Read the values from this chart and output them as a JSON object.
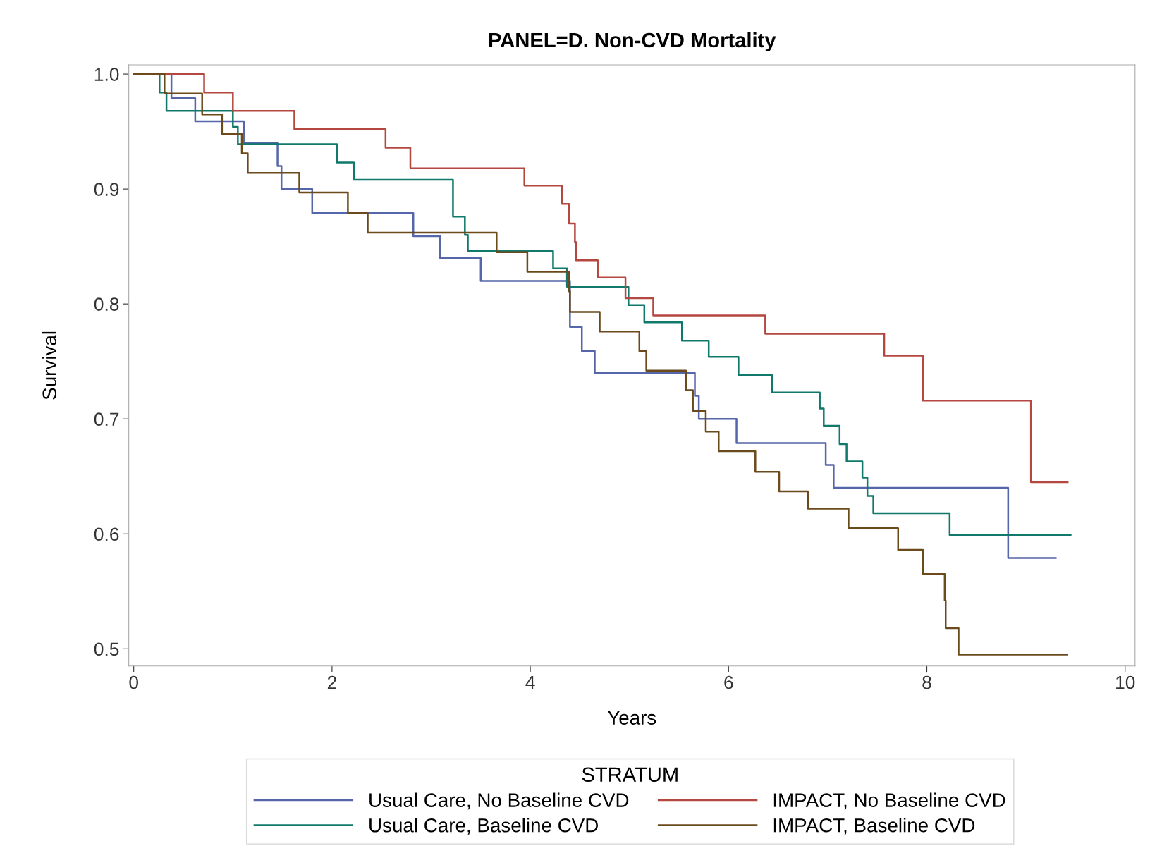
{
  "chart_data": {
    "type": "step",
    "title": "PANEL=D. Non-CVD Mortality",
    "xlabel": "Years",
    "ylabel": "Survival",
    "legend_title": "STRATUM",
    "legend": "bottom",
    "grid": false,
    "marker": "none",
    "line_style": "solid",
    "xlim": [
      -0.05,
      10.1
    ],
    "xticks": [
      0,
      2,
      4,
      6,
      8,
      10
    ],
    "ylim": [
      0.485,
      1.008
    ],
    "yticks": [
      0.5,
      0.6,
      0.7,
      0.8,
      0.9,
      {
        "value": 1.0,
        "label": "1.0"
      }
    ],
    "series": [
      {
        "name": "Usual Care, No Baseline CVD",
        "color": "#5566aa",
        "x": [
          0,
          0.38,
          0.62,
          1.11,
          1.45,
          1.49,
          1.8,
          2.82,
          3.09,
          3.5,
          4.4,
          4.52,
          4.65,
          5.66,
          5.7,
          6.08,
          6.98,
          7.06,
          8.82,
          9.3
        ],
        "values": [
          1.0,
          0.979,
          0.959,
          0.94,
          0.92,
          0.9,
          0.879,
          0.859,
          0.84,
          0.82,
          0.78,
          0.759,
          0.74,
          0.72,
          0.7,
          0.679,
          0.66,
          0.64,
          0.579,
          0.579
        ]
      },
      {
        "name": "Usual Care, Baseline CVD",
        "color": "#10796b",
        "x": [
          0,
          0.26,
          0.33,
          1.0,
          1.05,
          2.05,
          2.22,
          3.22,
          3.34,
          3.37,
          4.23,
          4.37,
          4.99,
          5.15,
          5.53,
          5.8,
          6.1,
          6.44,
          6.92,
          6.96,
          7.12,
          7.19,
          7.35,
          7.4,
          7.46,
          8.23,
          9.45
        ],
        "values": [
          1.0,
          0.984,
          0.968,
          0.954,
          0.939,
          0.923,
          0.908,
          0.876,
          0.86,
          0.846,
          0.831,
          0.815,
          0.799,
          0.784,
          0.768,
          0.754,
          0.738,
          0.723,
          0.709,
          0.694,
          0.678,
          0.663,
          0.649,
          0.633,
          0.618,
          0.599,
          0.599
        ]
      },
      {
        "name": "IMPACT, No Baseline CVD",
        "color": "#b4473f",
        "x": [
          0,
          0.71,
          1.0,
          1.62,
          2.54,
          2.79,
          3.94,
          4.32,
          4.39,
          4.45,
          4.46,
          4.68,
          4.96,
          5.24,
          6.37,
          7.57,
          7.96,
          9.05,
          9.42
        ],
        "values": [
          1.0,
          0.984,
          0.968,
          0.952,
          0.936,
          0.918,
          0.903,
          0.887,
          0.87,
          0.854,
          0.838,
          0.823,
          0.805,
          0.79,
          0.774,
          0.755,
          0.716,
          0.645,
          0.645
        ]
      },
      {
        "name": "IMPACT, Baseline CVD",
        "color": "#6b4a1c",
        "x": [
          0,
          0.31,
          0.69,
          0.89,
          1.09,
          1.15,
          1.67,
          2.16,
          2.36,
          3.66,
          3.97,
          4.39,
          4.4,
          4.7,
          5.1,
          5.17,
          5.57,
          5.64,
          5.77,
          5.9,
          6.27,
          6.51,
          6.8,
          7.21,
          7.71,
          7.96,
          8.18,
          8.19,
          8.32,
          9.41
        ],
        "values": [
          1.0,
          0.983,
          0.965,
          0.948,
          0.931,
          0.914,
          0.897,
          0.879,
          0.862,
          0.845,
          0.828,
          0.811,
          0.793,
          0.776,
          0.759,
          0.742,
          0.725,
          0.707,
          0.689,
          0.672,
          0.654,
          0.637,
          0.622,
          0.605,
          0.586,
          0.565,
          0.542,
          0.518,
          0.495,
          0.495
        ]
      }
    ]
  }
}
